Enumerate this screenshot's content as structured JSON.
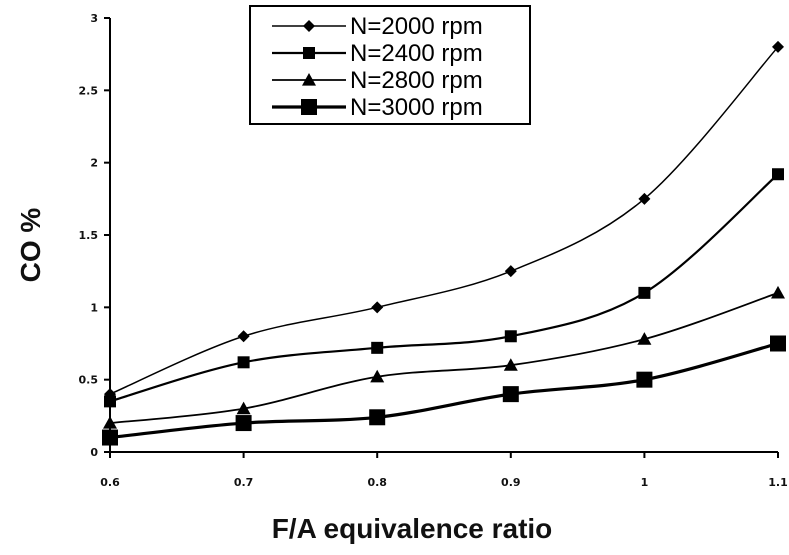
{
  "chart_data": {
    "type": "line",
    "xlabel": "F/A equivalence ratio",
    "ylabel": "CO %",
    "x": [
      0.6,
      0.7,
      0.8,
      0.9,
      1,
      1.1
    ],
    "xticks": [
      "0.6",
      "0.7",
      "0.8",
      "0.9",
      "1",
      "1.1"
    ],
    "yticks": [
      "0",
      "0.5",
      "1",
      "1.5",
      "2",
      "2.5",
      "3"
    ],
    "xlim": [
      0.6,
      1.1
    ],
    "ylim": [
      0,
      3
    ],
    "grid": false,
    "legend_position": "top-center",
    "series": [
      {
        "name": "N=2000 rpm",
        "marker": "diamond",
        "color": "#000000",
        "values": [
          0.4,
          0.8,
          1.0,
          1.25,
          1.75,
          2.8
        ]
      },
      {
        "name": "N=2400 rpm",
        "marker": "square",
        "color": "#000000",
        "values": [
          0.35,
          0.62,
          0.72,
          0.8,
          1.1,
          1.92
        ]
      },
      {
        "name": "N=2800 rpm",
        "marker": "triangle",
        "color": "#000000",
        "values": [
          0.2,
          0.3,
          0.52,
          0.6,
          0.78,
          1.1
        ]
      },
      {
        "name": "N=3000 rpm",
        "marker": "large-square",
        "color": "#000000",
        "values": [
          0.1,
          0.2,
          0.24,
          0.4,
          0.5,
          0.75
        ]
      }
    ]
  }
}
